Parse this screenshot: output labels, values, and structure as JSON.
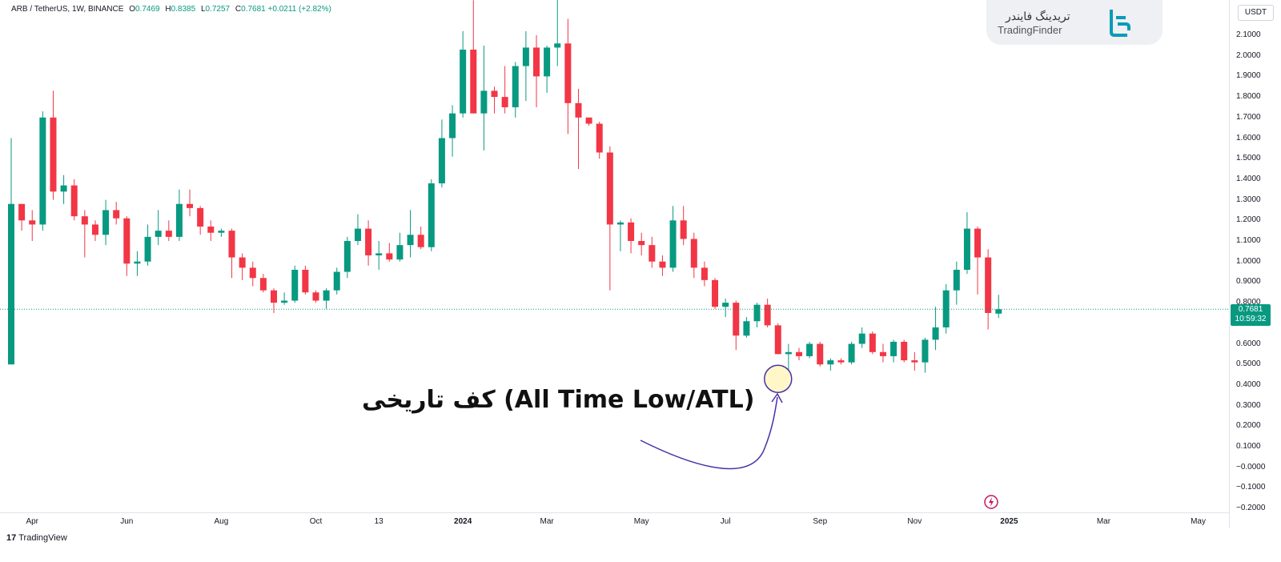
{
  "header": {
    "symbol": "ARB / TetherUS, 1W, BINANCE",
    "open_label": "O",
    "open": "0.7469",
    "high_label": "H",
    "high": "0.8385",
    "low_label": "L",
    "low": "0.7257",
    "close_label": "C",
    "close": "0.7681",
    "change": "+0.0211 (+2.82%)"
  },
  "currency_button": "USDT",
  "price_tag": {
    "price": "0.7681",
    "countdown": "10:59:32"
  },
  "logo": {
    "fa": "تریدینگ فایندر",
    "en": "TradingFinder"
  },
  "annotation": "کف تاریخی (All Time Low/ATL)",
  "footer": {
    "brand_mark": "17",
    "brand": "TradingView"
  },
  "colors": {
    "up": "#089981",
    "down": "#f23645",
    "annotation": "#4a2fa6",
    "highlight": "#fff7c8"
  },
  "chart_data": {
    "type": "candlestick",
    "y_ticks": [
      "2.1000",
      "2.0000",
      "1.9000",
      "1.8000",
      "1.7000",
      "1.6000",
      "1.5000",
      "1.4000",
      "1.3000",
      "1.2000",
      "1.1000",
      "1.0000",
      "0.9000",
      "0.8000",
      "0.7000",
      "0.6000",
      "0.5000",
      "0.4000",
      "0.3000",
      "0.2000",
      "0.1000",
      "−0.0000",
      "−0.1000",
      "−0.2000"
    ],
    "ylim": [
      -0.2,
      2.2
    ],
    "x_ticks": [
      {
        "label": "Apr",
        "i": 2
      },
      {
        "label": "Jun",
        "i": 11
      },
      {
        "label": "Aug",
        "i": 20
      },
      {
        "label": "Oct",
        "i": 29
      },
      {
        "label": "13",
        "i": 35
      },
      {
        "label": "2024",
        "i": 43,
        "bold": true
      },
      {
        "label": "Mar",
        "i": 51
      },
      {
        "label": "May",
        "i": 60
      },
      {
        "label": "Jul",
        "i": 68
      },
      {
        "label": "Sep",
        "i": 77
      },
      {
        "label": "Nov",
        "i": 86
      },
      {
        "label": "2025",
        "i": 95,
        "bold": true
      },
      {
        "label": "Mar",
        "i": 104
      },
      {
        "label": "May",
        "i": 113
      }
    ],
    "last_price": 0.7681,
    "candles": [
      {
        "o": 0.5,
        "h": 1.6,
        "l": 0.5,
        "c": 1.28
      },
      {
        "o": 1.28,
        "h": 1.28,
        "l": 1.15,
        "c": 1.2
      },
      {
        "o": 1.2,
        "h": 1.25,
        "l": 1.1,
        "c": 1.18
      },
      {
        "o": 1.18,
        "h": 1.73,
        "l": 1.15,
        "c": 1.7
      },
      {
        "o": 1.7,
        "h": 1.83,
        "l": 1.3,
        "c": 1.34
      },
      {
        "o": 1.34,
        "h": 1.42,
        "l": 1.28,
        "c": 1.37
      },
      {
        "o": 1.37,
        "h": 1.4,
        "l": 1.2,
        "c": 1.22
      },
      {
        "o": 1.22,
        "h": 1.25,
        "l": 1.02,
        "c": 1.18
      },
      {
        "o": 1.18,
        "h": 1.2,
        "l": 1.1,
        "c": 1.13
      },
      {
        "o": 1.13,
        "h": 1.3,
        "l": 1.08,
        "c": 1.25
      },
      {
        "o": 1.25,
        "h": 1.29,
        "l": 1.18,
        "c": 1.21
      },
      {
        "o": 1.21,
        "h": 1.22,
        "l": 0.93,
        "c": 0.99
      },
      {
        "o": 0.99,
        "h": 1.05,
        "l": 0.93,
        "c": 1.0
      },
      {
        "o": 1.0,
        "h": 1.18,
        "l": 0.98,
        "c": 1.12
      },
      {
        "o": 1.12,
        "h": 1.25,
        "l": 1.08,
        "c": 1.15
      },
      {
        "o": 1.15,
        "h": 1.2,
        "l": 1.1,
        "c": 1.12
      },
      {
        "o": 1.12,
        "h": 1.35,
        "l": 1.1,
        "c": 1.28
      },
      {
        "o": 1.28,
        "h": 1.35,
        "l": 1.22,
        "c": 1.26
      },
      {
        "o": 1.26,
        "h": 1.27,
        "l": 1.13,
        "c": 1.17
      },
      {
        "o": 1.17,
        "h": 1.2,
        "l": 1.1,
        "c": 1.14
      },
      {
        "o": 1.14,
        "h": 1.16,
        "l": 1.12,
        "c": 1.15
      },
      {
        "o": 1.15,
        "h": 1.16,
        "l": 0.92,
        "c": 1.02
      },
      {
        "o": 1.02,
        "h": 1.04,
        "l": 0.91,
        "c": 0.97
      },
      {
        "o": 0.97,
        "h": 1.0,
        "l": 0.88,
        "c": 0.92
      },
      {
        "o": 0.92,
        "h": 0.94,
        "l": 0.85,
        "c": 0.86
      },
      {
        "o": 0.86,
        "h": 0.87,
        "l": 0.75,
        "c": 0.8
      },
      {
        "o": 0.8,
        "h": 0.85,
        "l": 0.79,
        "c": 0.81
      },
      {
        "o": 0.81,
        "h": 0.98,
        "l": 0.8,
        "c": 0.96
      },
      {
        "o": 0.96,
        "h": 0.98,
        "l": 0.84,
        "c": 0.85
      },
      {
        "o": 0.85,
        "h": 0.86,
        "l": 0.8,
        "c": 0.81
      },
      {
        "o": 0.81,
        "h": 0.87,
        "l": 0.77,
        "c": 0.86
      },
      {
        "o": 0.86,
        "h": 0.97,
        "l": 0.84,
        "c": 0.95
      },
      {
        "o": 0.95,
        "h": 1.12,
        "l": 0.92,
        "c": 1.1
      },
      {
        "o": 1.1,
        "h": 1.23,
        "l": 1.08,
        "c": 1.16
      },
      {
        "o": 1.16,
        "h": 1.2,
        "l": 0.98,
        "c": 1.03
      },
      {
        "o": 1.03,
        "h": 1.1,
        "l": 0.96,
        "c": 1.04
      },
      {
        "o": 1.04,
        "h": 1.09,
        "l": 1.0,
        "c": 1.01
      },
      {
        "o": 1.01,
        "h": 1.14,
        "l": 1.0,
        "c": 1.08
      },
      {
        "o": 1.08,
        "h": 1.25,
        "l": 1.02,
        "c": 1.13
      },
      {
        "o": 1.13,
        "h": 1.17,
        "l": 1.06,
        "c": 1.07
      },
      {
        "o": 1.07,
        "h": 1.4,
        "l": 1.05,
        "c": 1.38
      },
      {
        "o": 1.38,
        "h": 1.69,
        "l": 1.36,
        "c": 1.6
      },
      {
        "o": 1.6,
        "h": 1.76,
        "l": 1.51,
        "c": 1.72
      },
      {
        "o": 1.72,
        "h": 2.12,
        "l": 1.7,
        "c": 2.03
      },
      {
        "o": 2.03,
        "h": 2.27,
        "l": 1.72,
        "c": 1.72
      },
      {
        "o": 1.72,
        "h": 2.05,
        "l": 1.54,
        "c": 1.83
      },
      {
        "o": 1.83,
        "h": 1.85,
        "l": 1.72,
        "c": 1.8
      },
      {
        "o": 1.8,
        "h": 1.95,
        "l": 1.72,
        "c": 1.75
      },
      {
        "o": 1.75,
        "h": 1.97,
        "l": 1.7,
        "c": 1.95
      },
      {
        "o": 1.95,
        "h": 2.12,
        "l": 1.78,
        "c": 2.04
      },
      {
        "o": 2.04,
        "h": 2.1,
        "l": 1.75,
        "c": 1.9
      },
      {
        "o": 1.9,
        "h": 2.05,
        "l": 1.82,
        "c": 2.04
      },
      {
        "o": 2.04,
        "h": 2.45,
        "l": 1.95,
        "c": 2.06
      },
      {
        "o": 2.06,
        "h": 2.18,
        "l": 1.62,
        "c": 1.77
      },
      {
        "o": 1.77,
        "h": 1.84,
        "l": 1.45,
        "c": 1.7
      },
      {
        "o": 1.7,
        "h": 1.68,
        "l": 1.66,
        "c": 1.67
      },
      {
        "o": 1.67,
        "h": 1.68,
        "l": 1.5,
        "c": 1.53
      },
      {
        "o": 1.53,
        "h": 1.56,
        "l": 0.86,
        "c": 1.18
      },
      {
        "o": 1.18,
        "h": 1.2,
        "l": 1.05,
        "c": 1.19
      },
      {
        "o": 1.19,
        "h": 1.21,
        "l": 1.04,
        "c": 1.1
      },
      {
        "o": 1.1,
        "h": 1.14,
        "l": 1.03,
        "c": 1.08
      },
      {
        "o": 1.08,
        "h": 1.12,
        "l": 0.97,
        "c": 1.0
      },
      {
        "o": 1.0,
        "h": 1.03,
        "l": 0.93,
        "c": 0.97
      },
      {
        "o": 0.97,
        "h": 1.27,
        "l": 0.95,
        "c": 1.2
      },
      {
        "o": 1.2,
        "h": 1.27,
        "l": 1.08,
        "c": 1.11
      },
      {
        "o": 1.11,
        "h": 1.14,
        "l": 0.92,
        "c": 0.97
      },
      {
        "o": 0.97,
        "h": 1.0,
        "l": 0.88,
        "c": 0.91
      },
      {
        "o": 0.91,
        "h": 0.92,
        "l": 0.77,
        "c": 0.78
      },
      {
        "o": 0.78,
        "h": 0.82,
        "l": 0.73,
        "c": 0.8
      },
      {
        "o": 0.8,
        "h": 0.81,
        "l": 0.57,
        "c": 0.64
      },
      {
        "o": 0.64,
        "h": 0.73,
        "l": 0.63,
        "c": 0.71
      },
      {
        "o": 0.71,
        "h": 0.8,
        "l": 0.68,
        "c": 0.79
      },
      {
        "o": 0.79,
        "h": 0.82,
        "l": 0.68,
        "c": 0.69
      },
      {
        "o": 0.69,
        "h": 0.7,
        "l": 0.55,
        "c": 0.55
      },
      {
        "o": 0.55,
        "h": 0.6,
        "l": 0.42,
        "c": 0.56
      },
      {
        "o": 0.56,
        "h": 0.58,
        "l": 0.52,
        "c": 0.54
      },
      {
        "o": 0.54,
        "h": 0.61,
        "l": 0.53,
        "c": 0.6
      },
      {
        "o": 0.6,
        "h": 0.61,
        "l": 0.49,
        "c": 0.5
      },
      {
        "o": 0.5,
        "h": 0.53,
        "l": 0.47,
        "c": 0.52
      },
      {
        "o": 0.52,
        "h": 0.53,
        "l": 0.5,
        "c": 0.51
      },
      {
        "o": 0.51,
        "h": 0.61,
        "l": 0.5,
        "c": 0.6
      },
      {
        "o": 0.6,
        "h": 0.68,
        "l": 0.58,
        "c": 0.65
      },
      {
        "o": 0.65,
        "h": 0.66,
        "l": 0.55,
        "c": 0.56
      },
      {
        "o": 0.56,
        "h": 0.6,
        "l": 0.51,
        "c": 0.54
      },
      {
        "o": 0.54,
        "h": 0.62,
        "l": 0.51,
        "c": 0.61
      },
      {
        "o": 0.61,
        "h": 0.62,
        "l": 0.51,
        "c": 0.52
      },
      {
        "o": 0.52,
        "h": 0.56,
        "l": 0.47,
        "c": 0.51
      },
      {
        "o": 0.51,
        "h": 0.63,
        "l": 0.46,
        "c": 0.62
      },
      {
        "o": 0.62,
        "h": 0.78,
        "l": 0.57,
        "c": 0.68
      },
      {
        "o": 0.68,
        "h": 0.89,
        "l": 0.65,
        "c": 0.86
      },
      {
        "o": 0.86,
        "h": 1.0,
        "l": 0.79,
        "c": 0.96
      },
      {
        "o": 0.96,
        "h": 1.24,
        "l": 0.94,
        "c": 1.16
      },
      {
        "o": 1.16,
        "h": 1.17,
        "l": 0.84,
        "c": 1.02
      },
      {
        "o": 1.02,
        "h": 1.06,
        "l": 0.67,
        "c": 0.75
      },
      {
        "o": 0.7469,
        "h": 0.8385,
        "l": 0.7257,
        "c": 0.7681
      }
    ]
  }
}
